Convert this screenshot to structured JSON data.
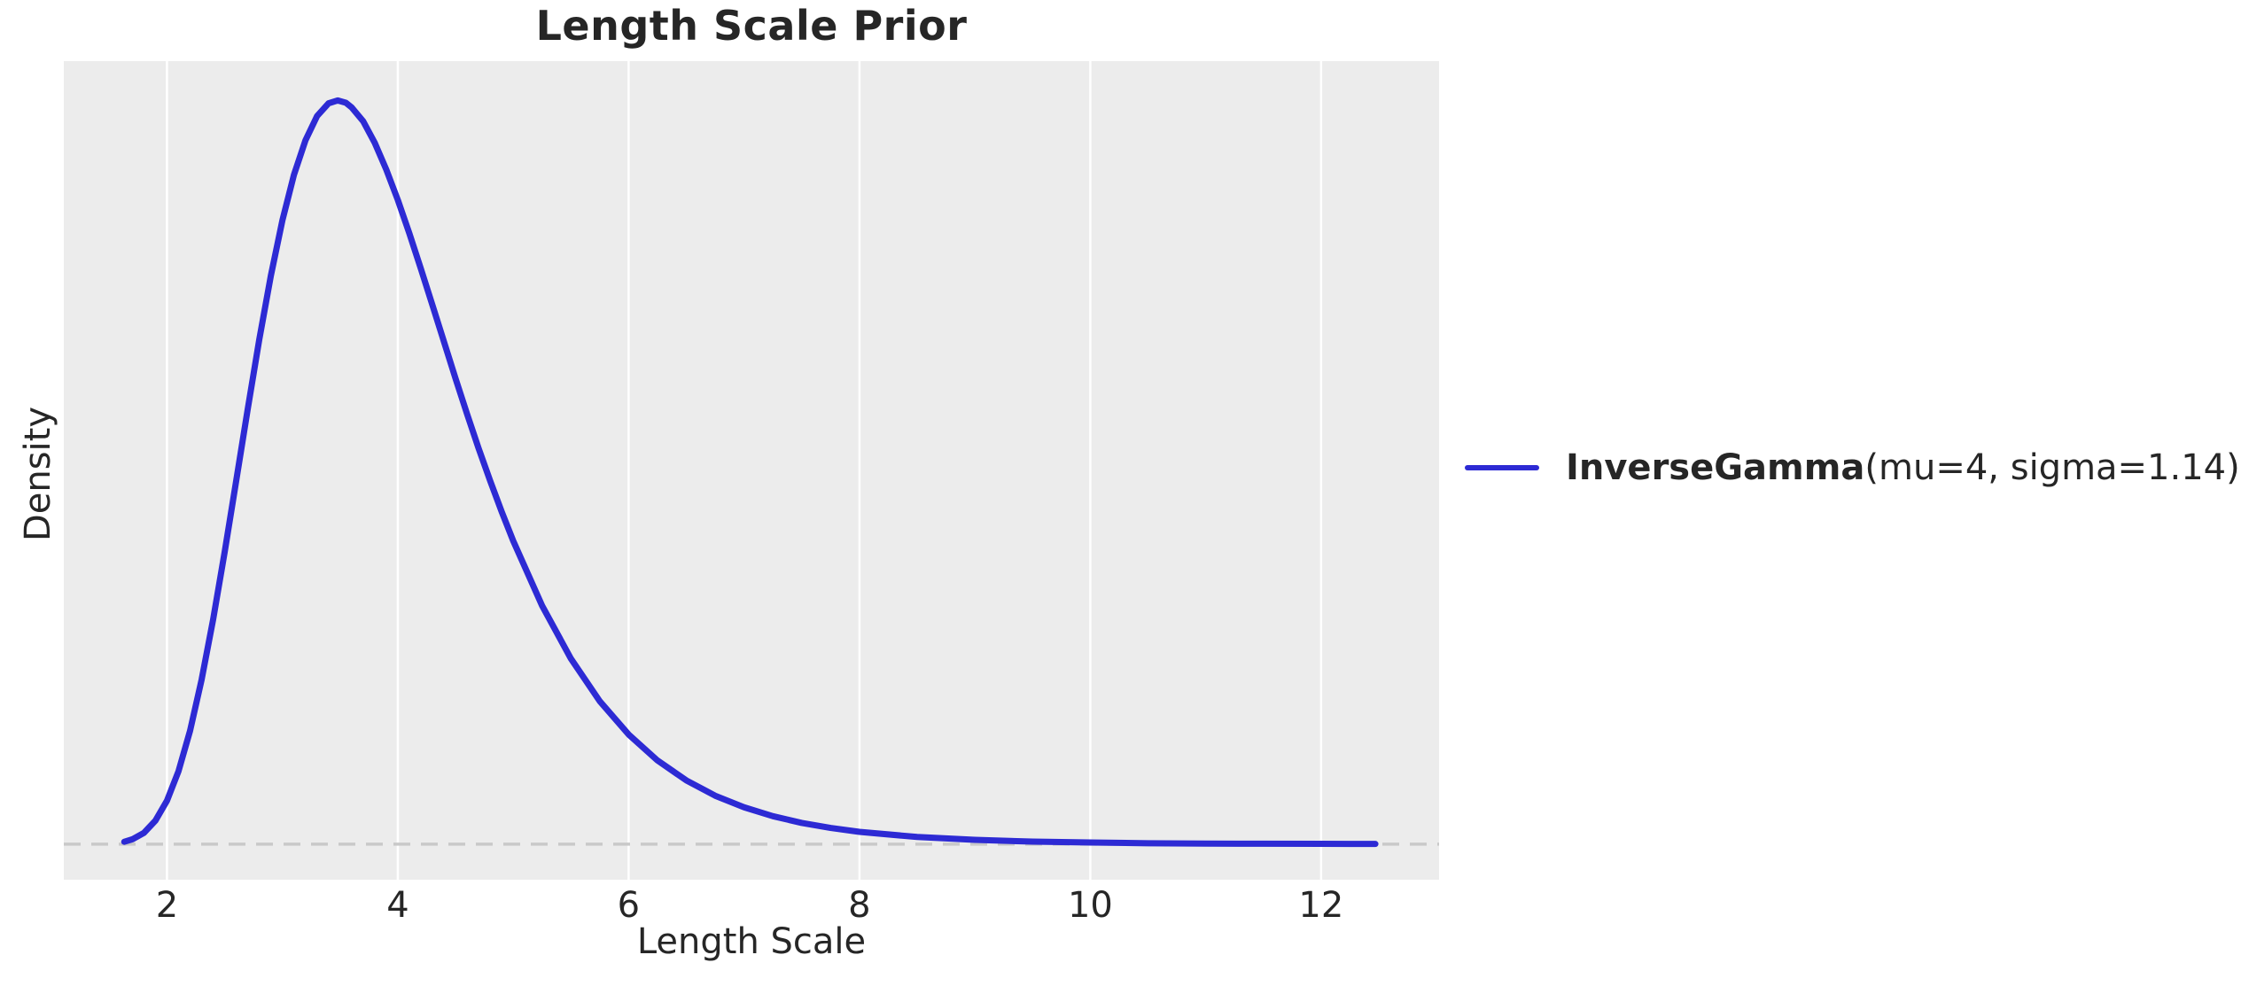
{
  "figure": {
    "title": "Length Scale Prior",
    "xlabel": "Length Scale",
    "ylabel": "Density"
  },
  "legend": {
    "name": "InverseGamma",
    "params": "(mu=4, sigma=1.14)"
  },
  "colors": {
    "curve": "#2d2ad4",
    "plot_background": "#ececec",
    "grid": "#ffffff",
    "zero_line": "#c9c9c9",
    "text": "#262626"
  },
  "chart_data": {
    "type": "line",
    "title": "Length Scale Prior",
    "xlabel": "Length Scale",
    "ylabel": "Density",
    "xlim": [
      1.106,
      13.022
    ],
    "ylim": [
      -0.02,
      0.44
    ],
    "x_ticks": [
      2,
      4,
      6,
      8,
      10,
      12
    ],
    "y_ticks": [],
    "grid": "vertical-only",
    "legend_position": "outside-right",
    "zero_line": {
      "y": 0,
      "style": "dashed"
    },
    "series": [
      {
        "name": "InverseGamma(mu=4, sigma=1.14)",
        "color": "#2d2ad4",
        "points": [
          [
            1.63,
            0.0013
          ],
          [
            1.7,
            0.0027
          ],
          [
            1.8,
            0.0063
          ],
          [
            1.9,
            0.0132
          ],
          [
            2.0,
            0.0244
          ],
          [
            2.1,
            0.041
          ],
          [
            2.2,
            0.0637
          ],
          [
            2.3,
            0.0924
          ],
          [
            2.4,
            0.1263
          ],
          [
            2.5,
            0.1642
          ],
          [
            2.6,
            0.2043
          ],
          [
            2.7,
            0.2446
          ],
          [
            2.8,
            0.2837
          ],
          [
            2.9,
            0.3194
          ],
          [
            3.0,
            0.3505
          ],
          [
            3.1,
            0.3761
          ],
          [
            3.2,
            0.3955
          ],
          [
            3.3,
            0.4091
          ],
          [
            3.4,
            0.4163
          ],
          [
            3.48,
            0.4179
          ],
          [
            3.55,
            0.4166
          ],
          [
            3.6,
            0.414
          ],
          [
            3.7,
            0.4062
          ],
          [
            3.8,
            0.3941
          ],
          [
            3.9,
            0.3791
          ],
          [
            4.0,
            0.362
          ],
          [
            4.1,
            0.3432
          ],
          [
            4.2,
            0.3233
          ],
          [
            4.3,
            0.3029
          ],
          [
            4.4,
            0.2823
          ],
          [
            4.5,
            0.2617
          ],
          [
            4.6,
            0.2417
          ],
          [
            4.7,
            0.2224
          ],
          [
            4.8,
            0.2042
          ],
          [
            4.9,
            0.1868
          ],
          [
            5.0,
            0.1704
          ],
          [
            5.25,
            0.134
          ],
          [
            5.5,
            0.1042
          ],
          [
            5.75,
            0.0803
          ],
          [
            6.0,
            0.0616
          ],
          [
            6.25,
            0.047
          ],
          [
            6.5,
            0.0358
          ],
          [
            6.75,
            0.0272
          ],
          [
            7.0,
            0.0207
          ],
          [
            7.25,
            0.0157
          ],
          [
            7.5,
            0.0119
          ],
          [
            7.75,
            0.0091
          ],
          [
            8.0,
            0.0069
          ],
          [
            8.5,
            0.004
          ],
          [
            9.0,
            0.0024
          ],
          [
            9.5,
            0.0014
          ],
          [
            10.0,
            0.0009
          ],
          [
            10.5,
            0.0005
          ],
          [
            11.0,
            0.0003
          ],
          [
            11.5,
            0.0002
          ],
          [
            12.0,
            0.00013
          ],
          [
            12.47,
            8e-05
          ]
        ]
      }
    ]
  }
}
